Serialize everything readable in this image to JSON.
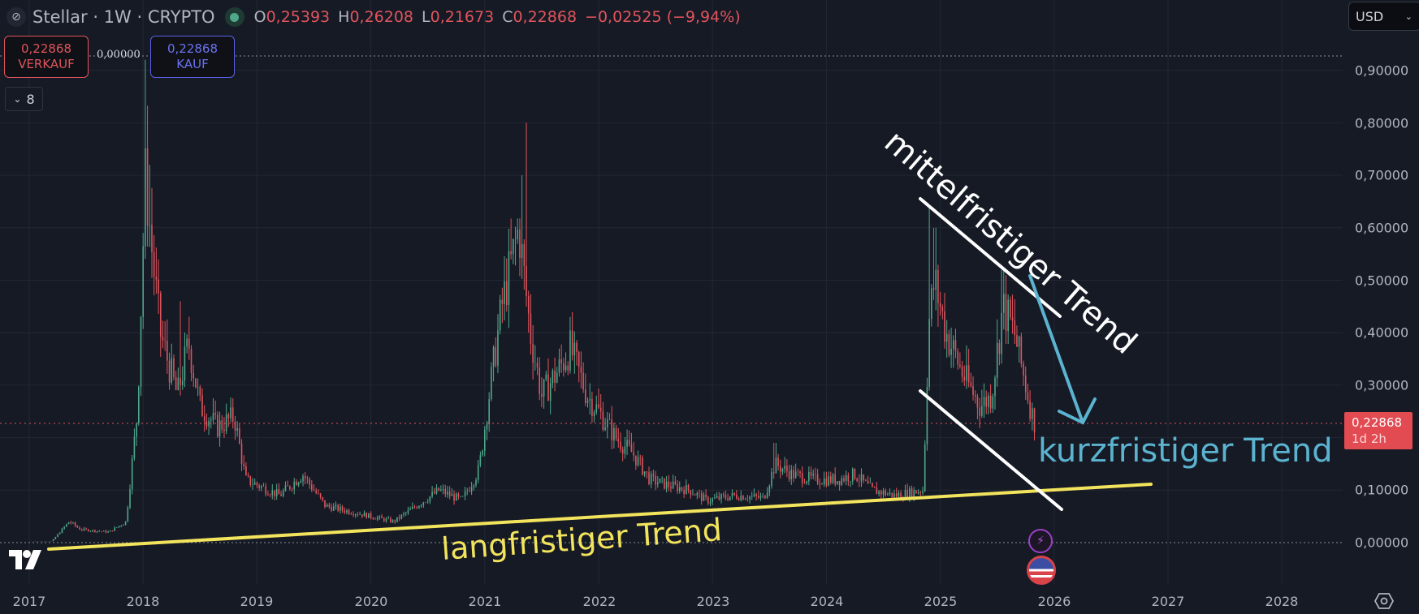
{
  "header": {
    "symbol_icon": "stellar-logo-icon",
    "title": "Stellar · 1W · CRYPTO",
    "status_icon": "market-status-dot-icon",
    "ohlc": [
      {
        "key": "O",
        "value": "0,25393"
      },
      {
        "key": "H",
        "value": "0,26208"
      },
      {
        "key": "L",
        "value": "0,21673"
      },
      {
        "key": "C",
        "value": "0,22868"
      }
    ],
    "change": "−0,02525 (−9,94%)"
  },
  "trade": {
    "sell_price": "0,22868",
    "sell_label": "VERKAUF",
    "spread": "0,00000",
    "buy_price": "0,22868",
    "buy_label": "KAUF"
  },
  "indicators_toggle": {
    "icon": "chevron-down-icon",
    "count": "8"
  },
  "currency": {
    "label": "USD",
    "icon": "chevron-down-icon"
  },
  "price_axis": {
    "labels": [
      "0,90000",
      "0,80000",
      "0,70000",
      "0,60000",
      "0,50000",
      "0,40000",
      "0,30000",
      "0,10000",
      "0,00000"
    ],
    "current_price": "0,22868",
    "countdown": "1d 2h"
  },
  "time_axis": {
    "labels": [
      "2017",
      "2018",
      "2019",
      "2020",
      "2021",
      "2022",
      "2023",
      "2024",
      "2025",
      "2026",
      "2027",
      "2028"
    ]
  },
  "annotations": {
    "long_term": "langfristiger Trend",
    "mid_term": "mittelfristiger Trend",
    "short_term": "kurzfristiger Trend"
  },
  "colors": {
    "background": "#161a25",
    "grid": "#232735",
    "up": "#4fa88b",
    "down": "#e0545c",
    "long_term_line": "#f2e45c",
    "mid_term_line": "#ffffff",
    "short_term_arrow": "#5bb3d0",
    "price_tag": "#e24b52"
  },
  "chart_data": {
    "type": "candlestick",
    "title": "Stellar · 1W · CRYPTO",
    "xlabel": "",
    "ylabel": "USD",
    "ylim": [
      -0.12,
      1.0
    ],
    "x_ticks": [
      "2017",
      "2018",
      "2019",
      "2020",
      "2021",
      "2022",
      "2023",
      "2024",
      "2025",
      "2026",
      "2027",
      "2028"
    ],
    "y_ticks": [
      0.0,
      0.1,
      0.3,
      0.4,
      0.5,
      0.6,
      0.7,
      0.8,
      0.9
    ],
    "grid": true,
    "last": {
      "open": 0.25393,
      "high": 0.26208,
      "low": 0.21673,
      "close": 0.22868,
      "change": -0.02525,
      "change_pct": -9.94
    },
    "approx_highs": [
      {
        "date": "2018-01",
        "high": 0.92
      },
      {
        "date": "2018-05",
        "high": 0.46
      },
      {
        "date": "2021-05",
        "high": 0.8
      },
      {
        "date": "2021-09",
        "high": 0.43
      },
      {
        "date": "2023-07",
        "high": 0.19
      },
      {
        "date": "2024-12",
        "high": 0.64
      },
      {
        "date": "2025-07",
        "high": 0.52
      }
    ],
    "approx_lows": [
      {
        "date": "2017-04",
        "low": 0.01
      },
      {
        "date": "2020-03",
        "low": 0.03
      },
      {
        "date": "2022-12",
        "low": 0.07
      },
      {
        "date": "2024-09",
        "low": 0.08
      }
    ],
    "trendlines": [
      {
        "name": "langfristiger Trend",
        "color": "#f2e45c",
        "from": {
          "date": "2017-03",
          "price": -0.005
        },
        "to": {
          "date": "2026-11",
          "price": 0.11
        }
      },
      {
        "name": "mittelfristiger Trend (upper)",
        "color": "#ffffff",
        "from": {
          "date": "2024-12",
          "price": 0.65
        },
        "to": {
          "date": "2025-12",
          "price": 0.43
        }
      },
      {
        "name": "mittelfristiger Trend (lower)",
        "color": "#ffffff",
        "from": {
          "date": "2024-12",
          "price": 0.29
        },
        "to": {
          "date": "2025-12",
          "price": 0.06
        }
      },
      {
        "name": "kurzfristiger Trend (arrow)",
        "color": "#5bb3d0",
        "from": {
          "date": "2025-10",
          "price": 0.51
        },
        "to": {
          "date": "2026-03",
          "price": 0.23
        }
      }
    ]
  }
}
